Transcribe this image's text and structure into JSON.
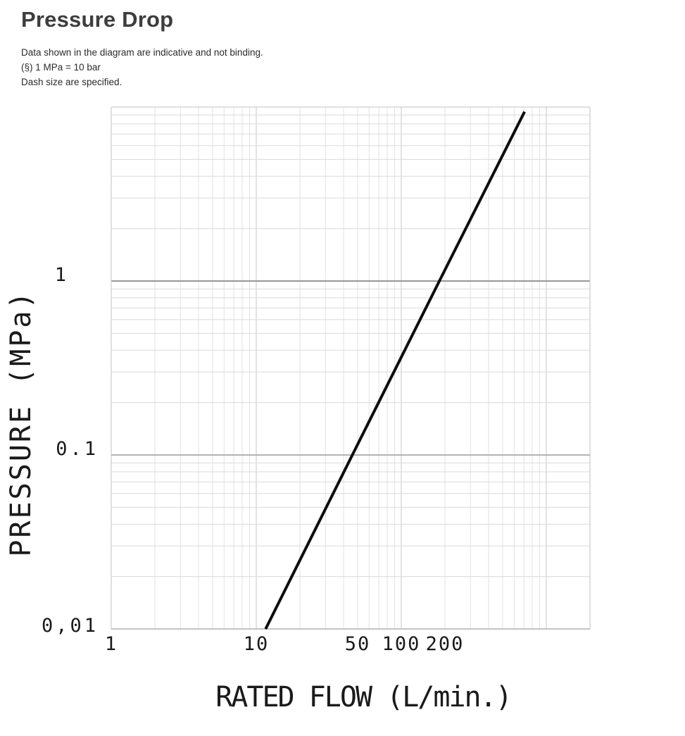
{
  "header": {
    "title": "Pressure Drop",
    "notes": [
      "Data shown in the diagram are indicative and not binding.",
      "(§) 1 MPa = 10 bar",
      "Dash size are specified."
    ]
  },
  "chart_data": {
    "type": "line",
    "scale": "log-log",
    "grid": "log minor and major gridlines, frame on all sides",
    "x_axis": {
      "label": "RATED FLOW (L/min.)",
      "scale": "log",
      "min": 1,
      "max": 2000,
      "ticks": [
        {
          "v": 1,
          "label": "1"
        },
        {
          "v": 10,
          "label": "10"
        },
        {
          "v": 50,
          "label": "50"
        },
        {
          "v": 100,
          "label": "100"
        },
        {
          "v": 200,
          "label": "200"
        }
      ]
    },
    "y_axis": {
      "label": "PRESSURE (MPa)",
      "scale": "log",
      "min": 0.01,
      "max": 10,
      "ticks": [
        {
          "v": 1,
          "label": "1"
        },
        {
          "v": 0.1,
          "label": "0.1"
        },
        {
          "v": 0.01,
          "label": "0,01"
        }
      ]
    },
    "series": [
      {
        "name": "pressure-drop-curve",
        "color": "#0d0d0d",
        "stroke_width": 4,
        "points": [
          [
            11.6,
            0.01
          ],
          [
            46,
            0.1
          ],
          [
            183,
            1.0
          ],
          [
            708,
            9.4
          ]
        ]
      }
    ],
    "colors": {
      "minor_grid_v": "#e2e2e2",
      "minor_grid_h": "#dadada",
      "decade_grid_v": "#c7c7c7",
      "major_grid_1": "#8a8a8a",
      "major_grid_01": "#9c9c9c",
      "frame": "#c2c2c2",
      "bottom_axis": "#b0b0b0",
      "curve": "#0d0d0d",
      "text": "#1a1a1a"
    }
  }
}
